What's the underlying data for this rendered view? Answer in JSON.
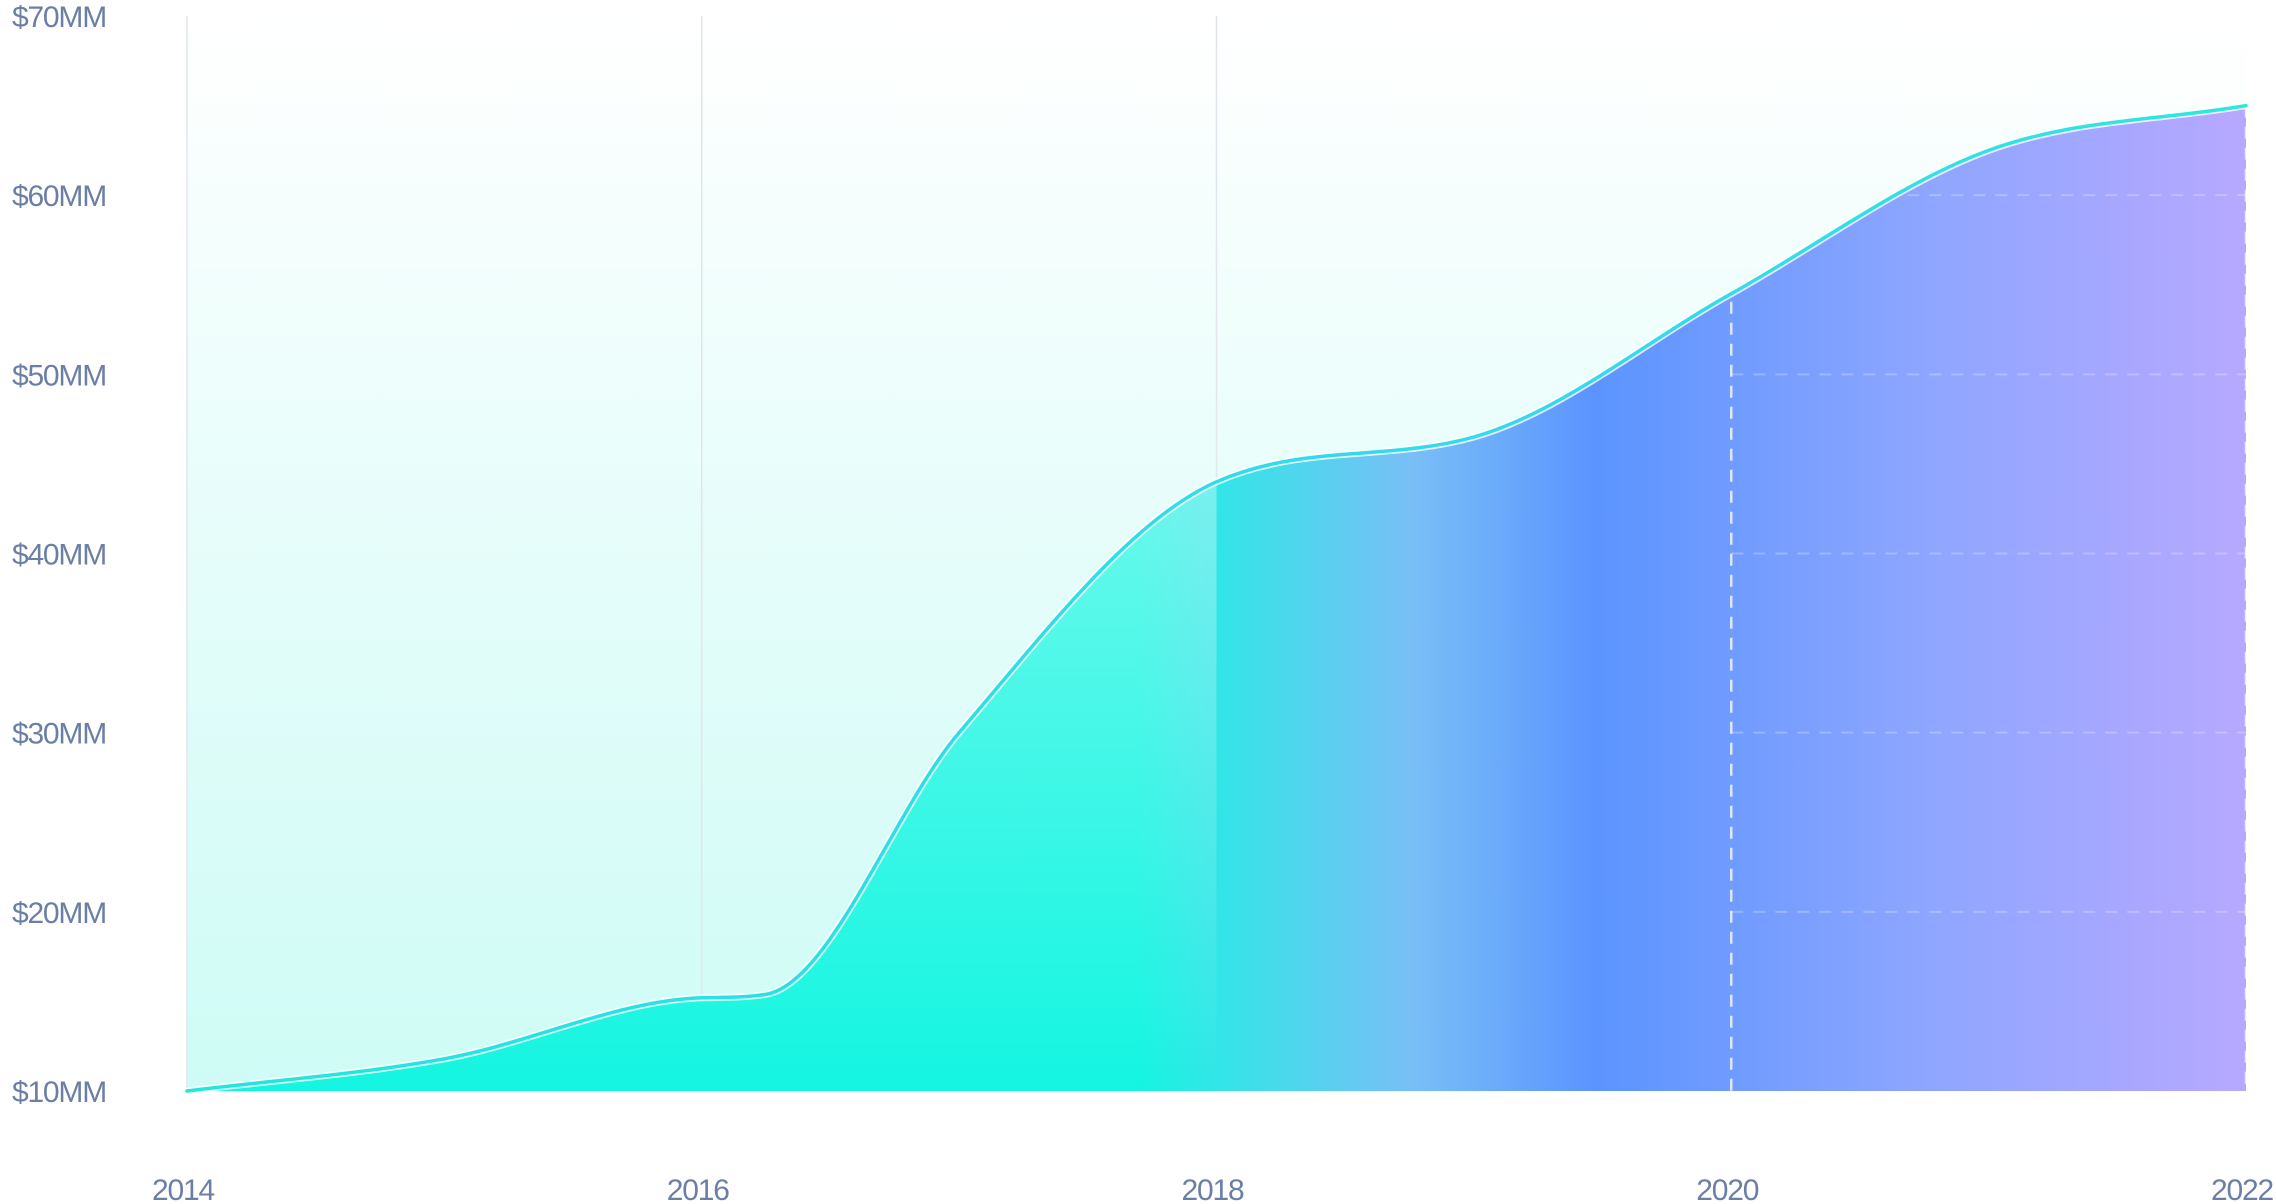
{
  "chart_data": {
    "type": "area",
    "x": [
      2014,
      2015,
      2016,
      2016.25,
      2017,
      2018,
      2019,
      2020,
      2021,
      2022
    ],
    "values": [
      10,
      11.8,
      15.2,
      15.4,
      30,
      44,
      46.5,
      54.5,
      62.5,
      65
    ],
    "x_ticks": [
      "2014",
      "2016",
      "2018",
      "2020",
      "2022"
    ],
    "y_ticks": [
      "$10MM",
      "$20MM",
      "$30MM",
      "$40MM",
      "$50MM",
      "$60MM",
      "$70MM"
    ],
    "xlim": [
      2014,
      2022
    ],
    "ylim": [
      10,
      70
    ],
    "grid": "vertical",
    "colors": {
      "line": "#2ee8dc",
      "teal": "#14f5e1",
      "blue": "#5b94ff",
      "violet": "#b7a4ff",
      "label": "#6b7fa6",
      "grid": "#e2e6ec"
    }
  }
}
